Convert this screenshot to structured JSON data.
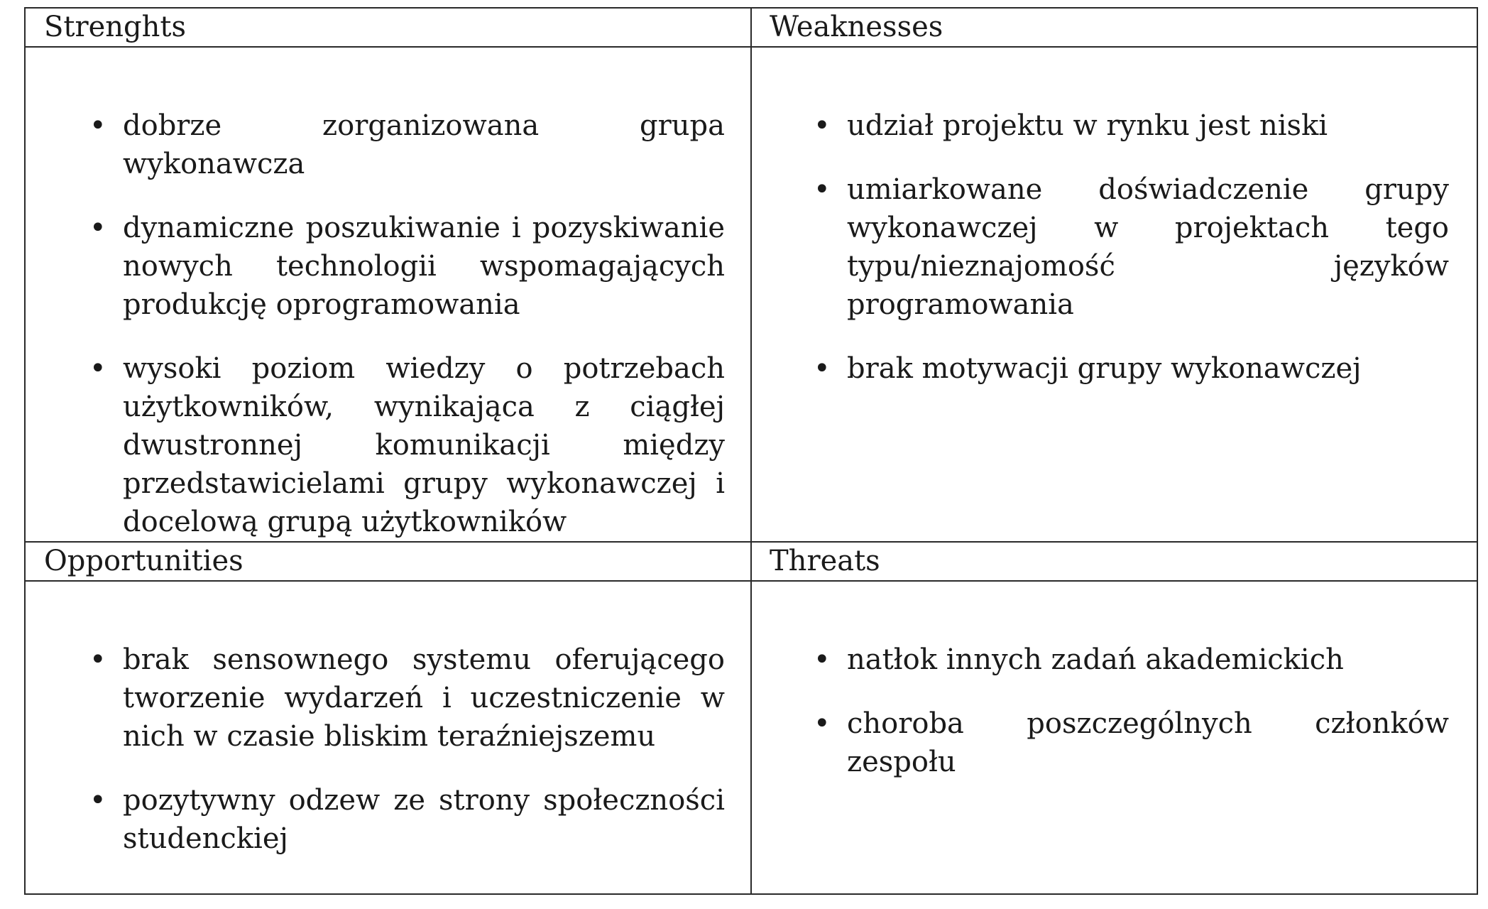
{
  "quadrants": {
    "strengths": {
      "heading": "Strenghts",
      "items": [
        "dobrze zorganizowana grupa wykonawcza",
        "dynamiczne poszukiwanie i pozyskiwanie nowych technologii wspomagających produkcję oprogramowania",
        "wysoki poziom wiedzy o potrzebach użytkowników, wynikająca z ciągłej dwustronnej komunikacji między przedstawicielami grupy wykonawczej i docelową grupą użytkowników"
      ]
    },
    "weaknesses": {
      "heading": "Weaknesses",
      "items": [
        "udział projektu w rynku jest niski",
        "umiarkowane doświadczenie grupy wykonawczej w projektach tego typu/nieznajomość języków programowania",
        "brak motywacji grupy wykonawczej"
      ]
    },
    "opportunities": {
      "heading": "Opportunities",
      "items": [
        "brak sensownego systemu oferującego tworzenie wydarzeń i uczestniczenie w nich w czasie bliskim teraźniejszemu",
        "pozytywny odzew ze strony społeczności studenckiej"
      ]
    },
    "threats": {
      "heading": "Threats",
      "items": [
        "natłok innych zadań akademickich",
        "choroba poszczególnych członków zespołu"
      ]
    }
  },
  "bullet_glyph": "•"
}
